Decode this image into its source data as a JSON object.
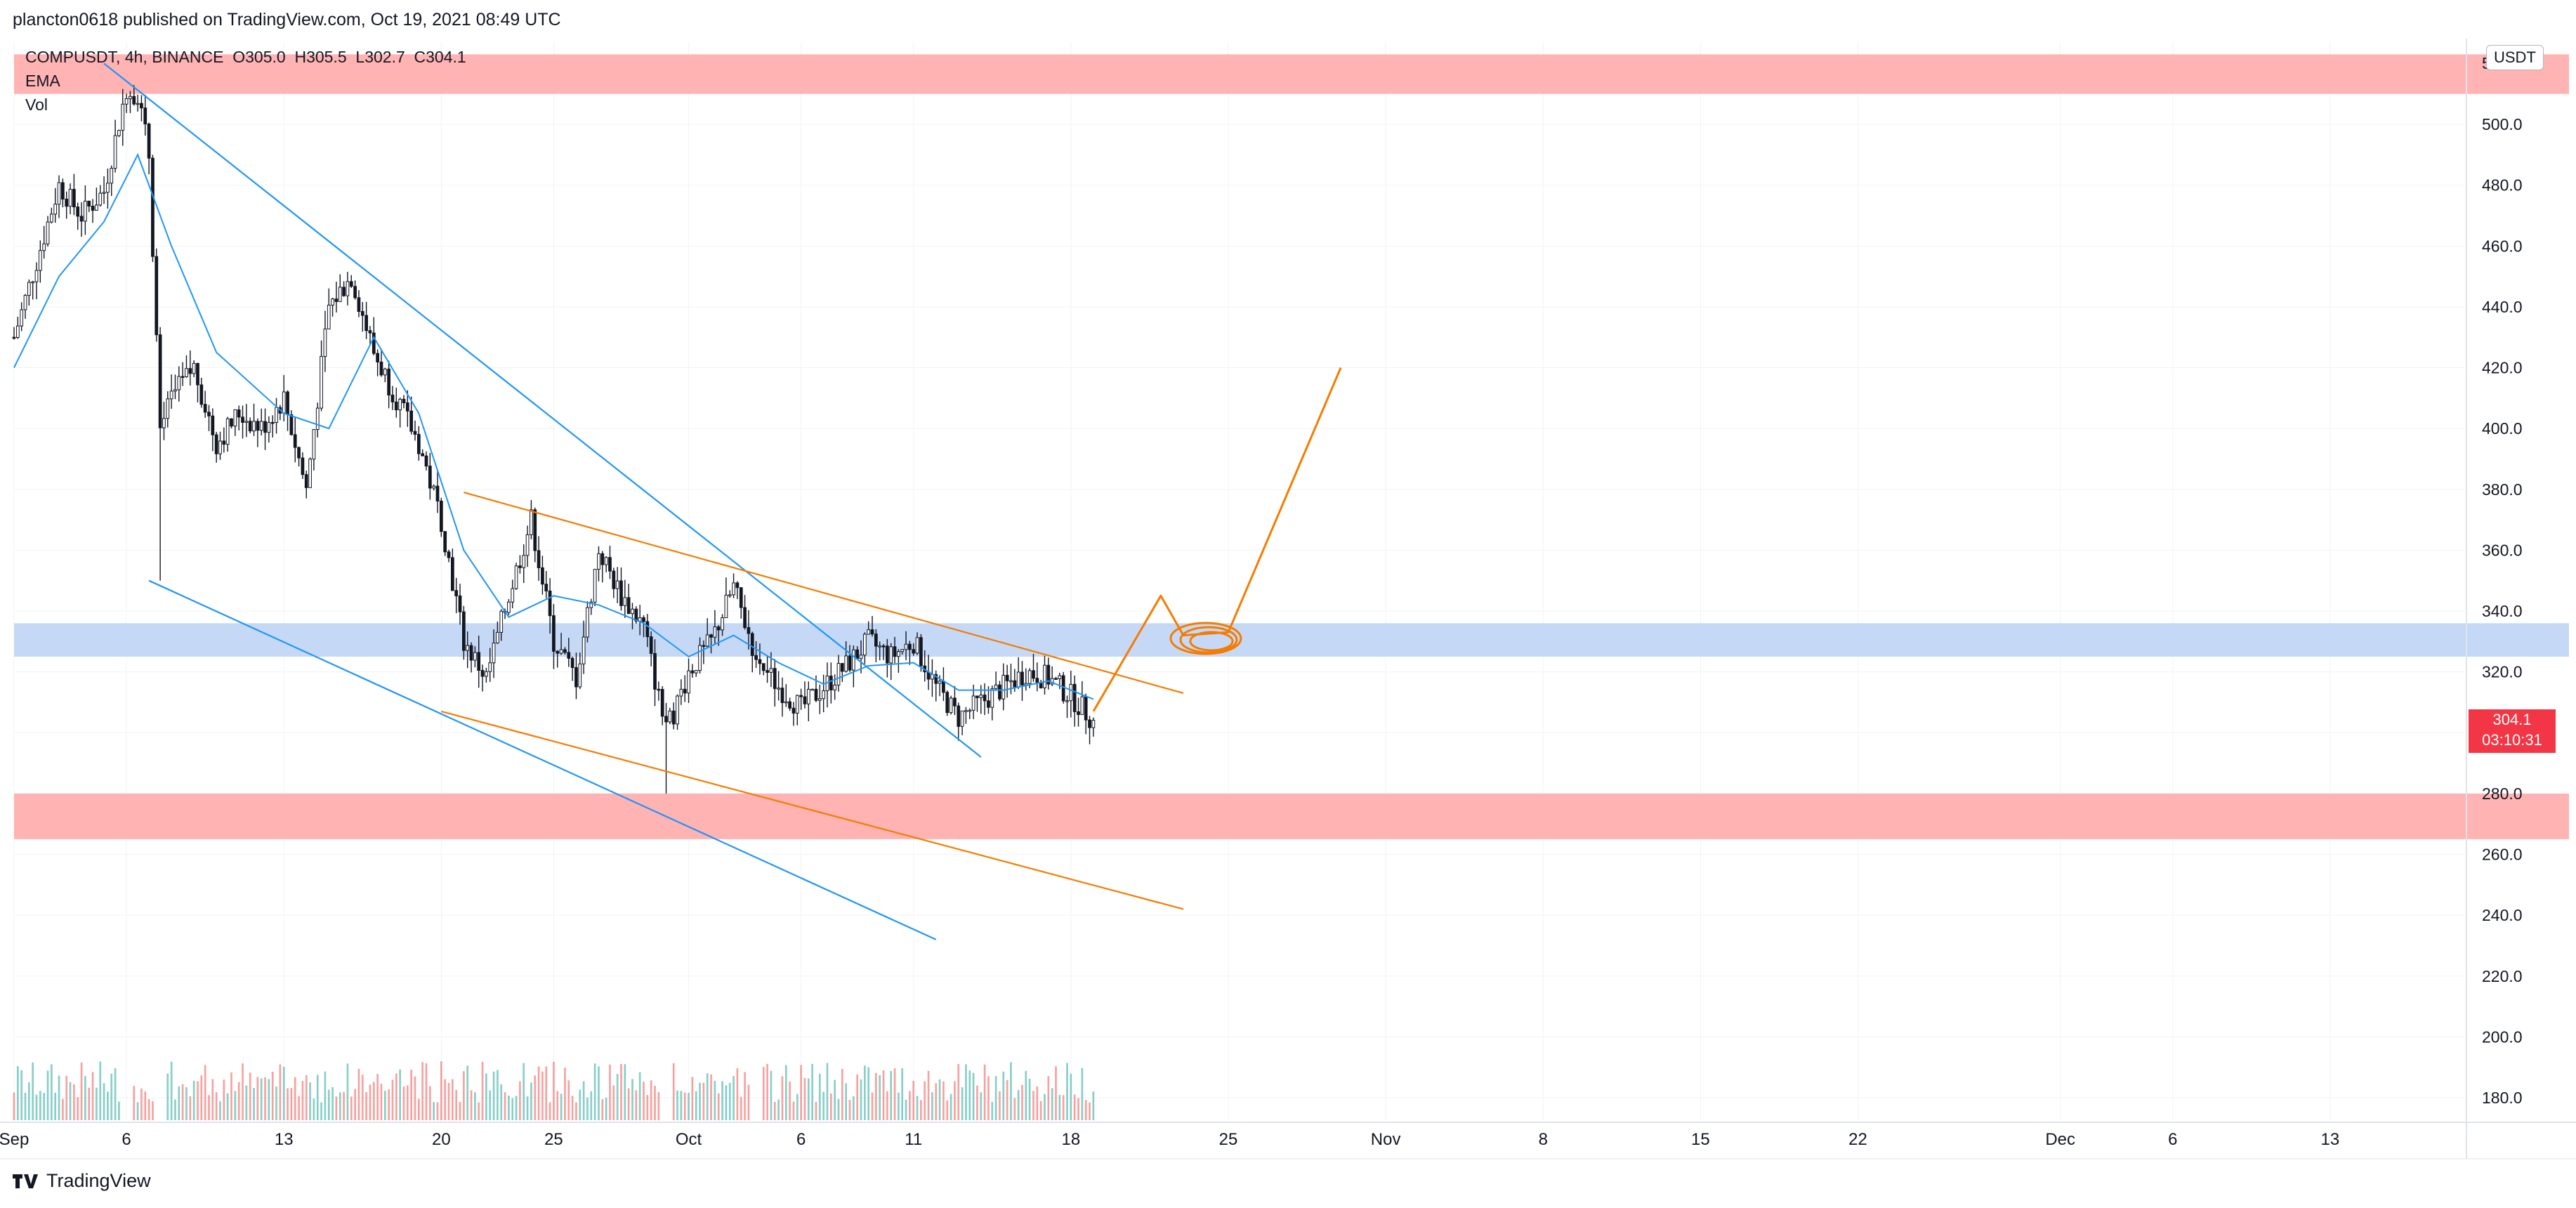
{
  "header": {
    "published_text": "plancton0618 published on TradingView.com, Oct 19, 2021 08:49 UTC"
  },
  "legend": {
    "symbol_line": "COMPUSDT, 4h, BINANCE  O305.0  H305.5  L302.7  C304.1",
    "ema_label": "EMA",
    "vol_label": "Vol"
  },
  "price_axis": {
    "currency": "USDT",
    "last_price": "304.1",
    "countdown": "03:10:31",
    "top_partial_label": "5"
  },
  "footer": {
    "brand": "TradingView"
  },
  "colors": {
    "up": "#26a69a",
    "down": "#ef5350",
    "ema": "#2196f3",
    "blue_lines": "#2196f3",
    "orange": "#f57c00",
    "red_zone": "#ffb3b3",
    "blue_zone": "#c5d9f7",
    "price_tag": "#f23645",
    "grid": "#f0f3fa",
    "axis_text": "#131722"
  },
  "chart_data": {
    "type": "candlestick",
    "symbol": "COMPUSDT",
    "interval": "4h",
    "exchange": "BINANCE",
    "last": {
      "open": 305.0,
      "high": 305.5,
      "low": 302.7,
      "close": 304.1
    },
    "y_range": [
      170,
      520
    ],
    "y_ticks": [
      180,
      200,
      220,
      240,
      260,
      280,
      300,
      320,
      340,
      360,
      380,
      400,
      420,
      440,
      460,
      480,
      500
    ],
    "y_tick_labels": [
      "180.0",
      "200.0",
      "220.0",
      "240.0",
      "260.0",
      "280.0",
      "300.0",
      "320.0",
      "340.0",
      "360.0",
      "380.0",
      "400.0",
      "420.0",
      "440.0",
      "460.0",
      "480.0",
      "500.0"
    ],
    "x_range": [
      "2021-09-01",
      "2021-12-19"
    ],
    "x_ticks": [
      {
        "date": "2021-09-01",
        "label": "Sep"
      },
      {
        "date": "2021-09-06",
        "label": "6"
      },
      {
        "date": "2021-09-13",
        "label": "13"
      },
      {
        "date": "2021-09-20",
        "label": "20"
      },
      {
        "date": "2021-09-25",
        "label": "25"
      },
      {
        "date": "2021-10-01",
        "label": "Oct"
      },
      {
        "date": "2021-10-06",
        "label": "6"
      },
      {
        "date": "2021-10-11",
        "label": "11"
      },
      {
        "date": "2021-10-18",
        "label": "18"
      },
      {
        "date": "2021-10-25",
        "label": "25"
      },
      {
        "date": "2021-11-01",
        "label": "Nov"
      },
      {
        "date": "2021-11-08",
        "label": "8"
      },
      {
        "date": "2021-11-15",
        "label": "15"
      },
      {
        "date": "2021-11-22",
        "label": "22"
      },
      {
        "date": "2021-12-01",
        "label": "Dec"
      },
      {
        "date": "2021-12-06",
        "label": "6"
      },
      {
        "date": "2021-12-13",
        "label": "13"
      }
    ],
    "price_path": [
      [
        "2021-09-01",
        430
      ],
      [
        "2021-09-02",
        455
      ],
      [
        "2021-09-03",
        480
      ],
      [
        "2021-09-04",
        470
      ],
      [
        "2021-09-05",
        478
      ],
      [
        "2021-09-06",
        512
      ],
      [
        "2021-09-06T12:00",
        510
      ],
      [
        "2021-09-07",
        490
      ],
      [
        "2021-09-07T12:00",
        400
      ],
      [
        "2021-09-08",
        410
      ],
      [
        "2021-09-09",
        420
      ],
      [
        "2021-09-10",
        395
      ],
      [
        "2021-09-11",
        405
      ],
      [
        "2021-09-12",
        400
      ],
      [
        "2021-09-13",
        410
      ],
      [
        "2021-09-14",
        380
      ],
      [
        "2021-09-15",
        440
      ],
      [
        "2021-09-16",
        450
      ],
      [
        "2021-09-17",
        425
      ],
      [
        "2021-09-18",
        410
      ],
      [
        "2021-09-19",
        395
      ],
      [
        "2021-09-20",
        370
      ],
      [
        "2021-09-21",
        330
      ],
      [
        "2021-09-22",
        318
      ],
      [
        "2021-09-23",
        345
      ],
      [
        "2021-09-24",
        370
      ],
      [
        "2021-09-25",
        330
      ],
      [
        "2021-09-26",
        318
      ],
      [
        "2021-09-27",
        360
      ],
      [
        "2021-09-28",
        345
      ],
      [
        "2021-09-29",
        335
      ],
      [
        "2021-09-30",
        300
      ],
      [
        "2021-10-01",
        320
      ],
      [
        "2021-10-02",
        330
      ],
      [
        "2021-10-03",
        348
      ],
      [
        "2021-10-04",
        325
      ],
      [
        "2021-10-05",
        315
      ],
      [
        "2021-10-06",
        308
      ],
      [
        "2021-10-07",
        315
      ],
      [
        "2021-10-08",
        322
      ],
      [
        "2021-10-09",
        330
      ],
      [
        "2021-10-10",
        325
      ],
      [
        "2021-10-11",
        330
      ],
      [
        "2021-10-12",
        315
      ],
      [
        "2021-10-13",
        305
      ],
      [
        "2021-10-14",
        310
      ],
      [
        "2021-10-15",
        315
      ],
      [
        "2021-10-16",
        320
      ],
      [
        "2021-10-17",
        318
      ],
      [
        "2021-10-18",
        312
      ],
      [
        "2021-10-19",
        304.1
      ]
    ],
    "spikes": [
      {
        "date": "2021-09-07T12:00",
        "low": 350
      },
      {
        "date": "2021-09-30",
        "low": 280
      }
    ],
    "ema_path": [
      [
        "2021-09-01",
        420
      ],
      [
        "2021-09-03",
        450
      ],
      [
        "2021-09-05",
        468
      ],
      [
        "2021-09-06T12:00",
        490
      ],
      [
        "2021-09-08",
        460
      ],
      [
        "2021-09-10",
        425
      ],
      [
        "2021-09-13",
        405
      ],
      [
        "2021-09-15",
        400
      ],
      [
        "2021-09-17",
        430
      ],
      [
        "2021-09-19",
        405
      ],
      [
        "2021-09-21",
        360
      ],
      [
        "2021-09-23",
        338
      ],
      [
        "2021-09-25",
        345
      ],
      [
        "2021-09-27",
        342
      ],
      [
        "2021-09-29",
        336
      ],
      [
        "2021-10-01",
        325
      ],
      [
        "2021-10-03",
        332
      ],
      [
        "2021-10-05",
        323
      ],
      [
        "2021-10-07",
        316
      ],
      [
        "2021-10-09",
        322
      ],
      [
        "2021-10-11",
        323
      ],
      [
        "2021-10-13",
        314
      ],
      [
        "2021-10-15",
        314
      ],
      [
        "2021-10-17",
        317
      ],
      [
        "2021-10-19",
        311
      ]
    ],
    "volume_bursts": [
      {
        "date": "2021-09-07T12:00",
        "volume": 0.55
      },
      {
        "date": "2021-09-30",
        "volume": 0.85
      },
      {
        "date": "2021-09-06",
        "volume": 0.4
      },
      {
        "date": "2021-10-04",
        "volume": 0.4
      }
    ],
    "zones": [
      {
        "kind": "resistance",
        "from": 510,
        "to": 523,
        "color": "red_zone"
      },
      {
        "kind": "support-target",
        "from": 325,
        "to": 336,
        "color": "blue_zone"
      },
      {
        "kind": "support",
        "from": 265,
        "to": 280,
        "color": "red_zone"
      }
    ],
    "trendlines": [
      {
        "color": "blue_lines",
        "from": [
          "2021-09-05",
          520
        ],
        "to": [
          "2021-10-14",
          292
        ]
      },
      {
        "color": "blue_lines",
        "from": [
          "2021-09-07",
          350
        ],
        "to": [
          "2021-10-12",
          232
        ]
      },
      {
        "color": "orange",
        "from": [
          "2021-09-21",
          379
        ],
        "to": [
          "2021-10-23",
          313
        ]
      },
      {
        "color": "orange",
        "from": [
          "2021-09-20",
          307
        ],
        "to": [
          "2021-10-23",
          242
        ]
      }
    ],
    "projection": {
      "color": "orange",
      "path": [
        [
          "2021-10-19",
          307
        ],
        [
          "2021-10-22",
          345
        ],
        [
          "2021-10-23",
          332
        ],
        [
          "2021-10-25",
          333
        ],
        [
          "2021-10-30",
          420
        ]
      ],
      "circle": {
        "date": "2021-10-24",
        "price": 331
      }
    }
  }
}
